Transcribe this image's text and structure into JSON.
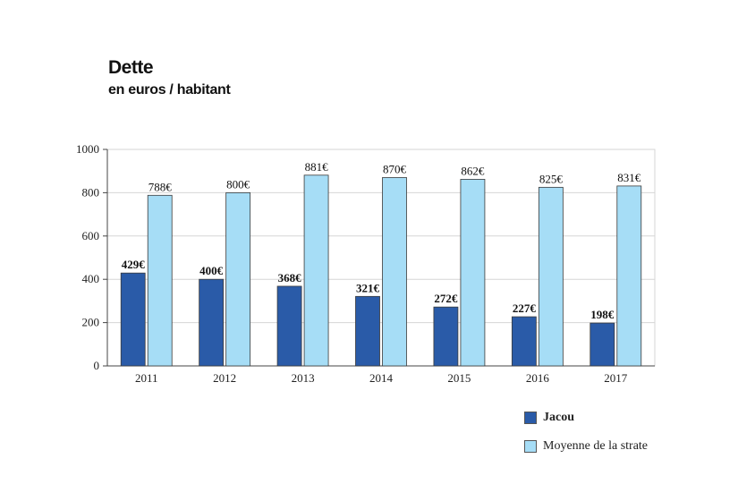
{
  "title": "Dette",
  "subtitle": "en euros / habitant",
  "colors": {
    "series1": "#2a5ba8",
    "series2": "#a6ddf6",
    "grid": "#d6d6d6",
    "plot_bg": "#ffffff"
  },
  "chart_data": {
    "type": "bar",
    "categories": [
      "2011",
      "2012",
      "2013",
      "2014",
      "2015",
      "2016",
      "2017"
    ],
    "series": [
      {
        "name": "Jacou",
        "values": [
          429,
          400,
          368,
          321,
          272,
          227,
          198
        ],
        "labels": [
          "429€",
          "400€",
          "368€",
          "321€",
          "272€",
          "227€",
          "198€"
        ]
      },
      {
        "name": "Moyenne de la strate",
        "values": [
          788,
          800,
          881,
          870,
          862,
          825,
          831
        ],
        "labels": [
          "788€",
          "800€",
          "881€",
          "870€",
          "862€",
          "825€",
          "831€"
        ]
      }
    ],
    "yticks": [
      "0",
      "200",
      "400",
      "600",
      "800",
      "1000"
    ],
    "ylim": [
      0,
      1000
    ],
    "grid": true,
    "legend": "bottom-right"
  }
}
